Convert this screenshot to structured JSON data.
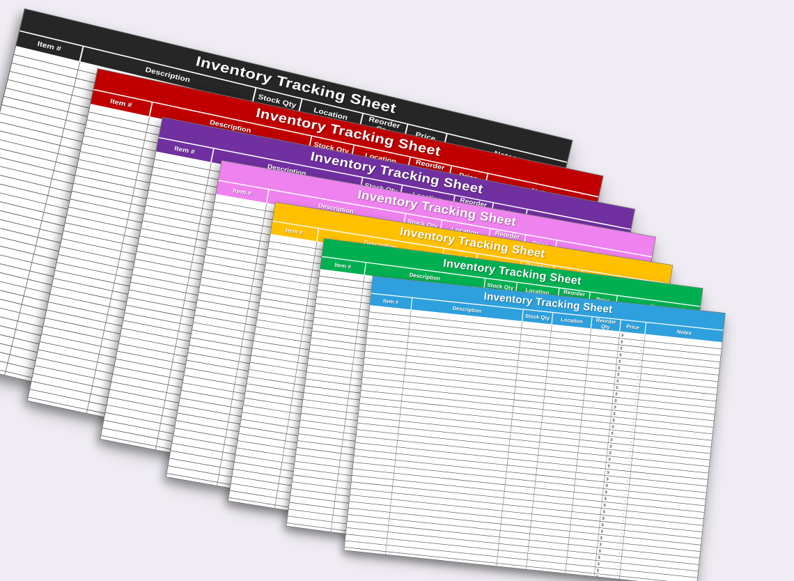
{
  "page": {
    "background": "#efecf3"
  },
  "title": "Inventory Tracking Sheet",
  "columns": [
    {
      "id": "item-number",
      "label": "Item #"
    },
    {
      "id": "description",
      "label": "Description"
    },
    {
      "id": "stock-qty",
      "label": "Stock Qty"
    },
    {
      "id": "location",
      "label": "Location"
    },
    {
      "id": "reorder-qty",
      "label": "Reorder Qty"
    },
    {
      "id": "price",
      "label": "Price"
    },
    {
      "id": "notes",
      "label": "Notes"
    }
  ],
  "price_placeholder": {
    "currency": "$",
    "value": "-"
  },
  "sheets": [
    {
      "name": "black",
      "color": "#262626"
    },
    {
      "name": "red",
      "color": "#c00000"
    },
    {
      "name": "purple",
      "color": "#7030a0"
    },
    {
      "name": "pink",
      "color": "#ee82ee"
    },
    {
      "name": "gold",
      "color": "#ffc000"
    },
    {
      "name": "green",
      "color": "#00b050"
    },
    {
      "name": "blue",
      "color": "#2da0dd"
    }
  ]
}
